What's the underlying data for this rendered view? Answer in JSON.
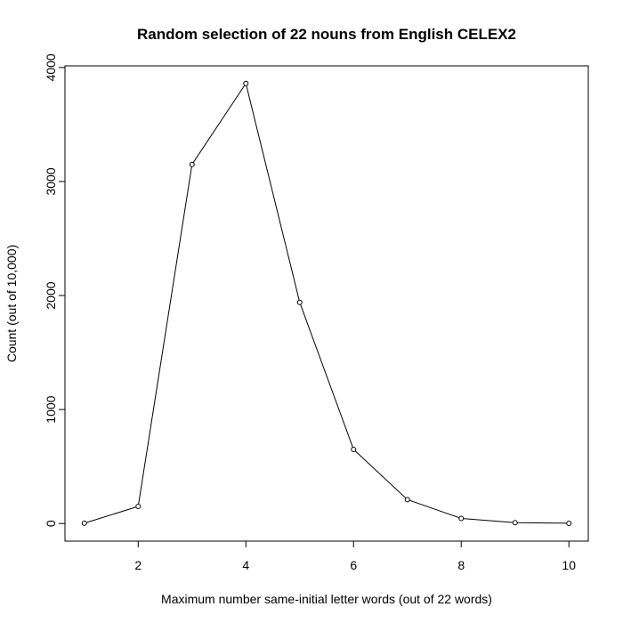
{
  "chart_data": {
    "type": "line",
    "title": "Random selection of 22 nouns from English CELEX2",
    "x_label": "Maximum number same-initial letter words (out of 22 words)",
    "y_label": "Count (out of 10,000)",
    "x": [
      1,
      2,
      3,
      4,
      5,
      6,
      7,
      8,
      9,
      10
    ],
    "values": [
      3,
      150,
      3150,
      3860,
      1940,
      650,
      210,
      45,
      8,
      2
    ],
    "color": "#000000",
    "xlim": [
      0.64,
      10.36
    ],
    "ylim": [
      -154.4,
      4014.4
    ],
    "xticks": [
      2,
      4,
      6,
      8,
      10
    ],
    "yticks": [
      0,
      1000,
      2000,
      3000,
      4000
    ]
  }
}
